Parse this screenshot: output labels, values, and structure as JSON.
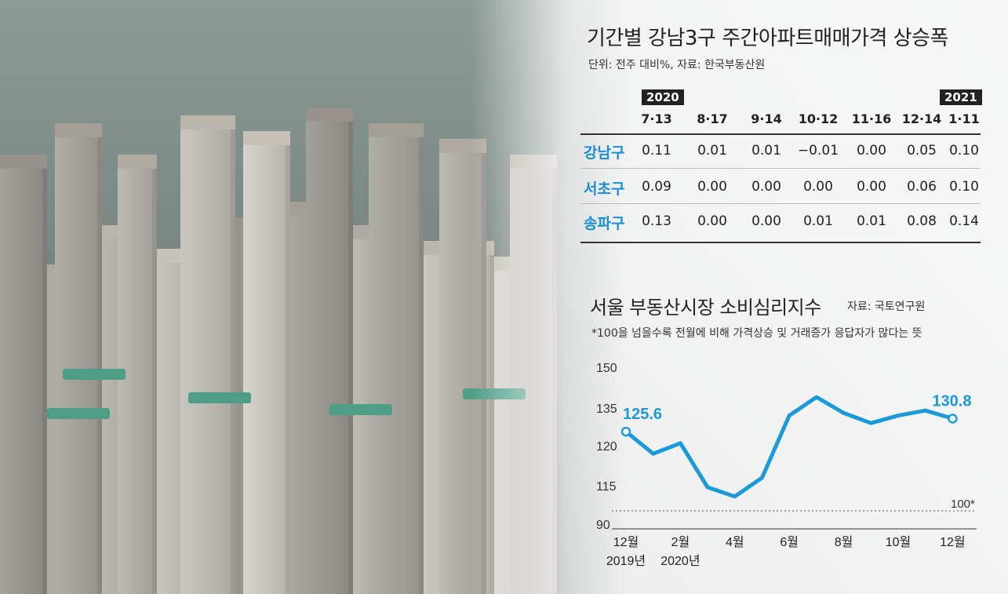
{
  "table": {
    "title": "기간별 강남3구 주간아파트매매가격 상승폭",
    "unit": "단위: 전주 대비%, 자료: 한국부동산원",
    "year_start": "2020",
    "year_end": "2021",
    "columns": [
      "7·13",
      "8·17",
      "9·14",
      "10·12",
      "11·16",
      "12·14",
      "1·11"
    ],
    "rows": [
      {
        "label": "강남구",
        "values": [
          "0.11",
          "0.01",
          "0.01",
          "−0.01",
          "0.00",
          "0.05",
          "0.10"
        ]
      },
      {
        "label": "서초구",
        "values": [
          "0.09",
          "0.00",
          "0.00",
          "0.00",
          "0.00",
          "0.06",
          "0.10"
        ]
      },
      {
        "label": "송파구",
        "values": [
          "0.13",
          "0.00",
          "0.00",
          "0.01",
          "0.01",
          "0.08",
          "0.14"
        ]
      }
    ]
  },
  "chart_data": {
    "type": "line",
    "title": "서울 부동산시장 소비심리지수",
    "source": "자료: 국토연구원",
    "note": "*100을 넘을수록 전월에 비해 가격상승 및 거래증가 응답자가 많다는 뜻",
    "reference_label": "100*",
    "y_ticks": [
      "150",
      "135",
      "120",
      "115",
      "90"
    ],
    "x_labels": [
      {
        "month": "12월",
        "year": "2019년"
      },
      {
        "month": "2월",
        "year": "2020년"
      },
      {
        "month": "4월",
        "year": ""
      },
      {
        "month": "6월",
        "year": ""
      },
      {
        "month": "8월",
        "year": ""
      },
      {
        "month": "10월",
        "year": ""
      },
      {
        "month": "12월",
        "year": ""
      }
    ],
    "series": [
      {
        "values": [
          125.6,
          119,
          121,
          114,
          108,
          116,
          132,
          139,
          133,
          129,
          132,
          134,
          130.8
        ]
      }
    ],
    "first_label": "125.6",
    "last_label": "130.8",
    "color": "#1a9ad9"
  }
}
